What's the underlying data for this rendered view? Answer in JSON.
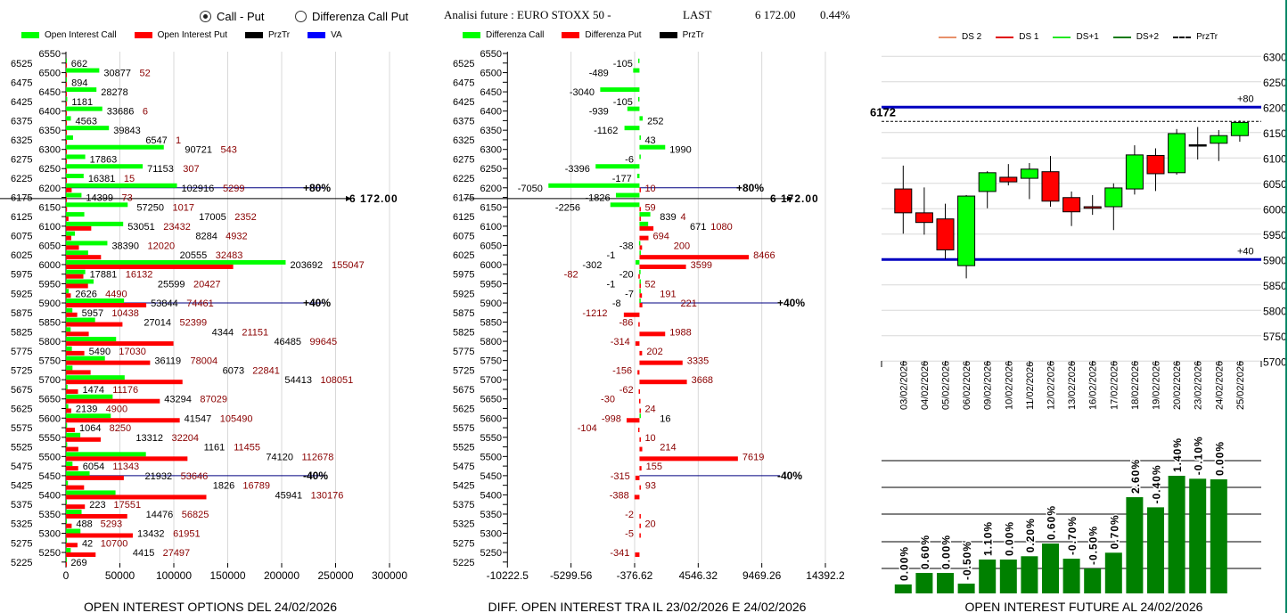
{
  "controls": {
    "radio_options": [
      {
        "label": "Call - Put",
        "selected": true
      },
      {
        "label": "Differenza Call Put",
        "selected": false
      }
    ]
  },
  "header": {
    "title": "Analisi future : EURO STOXX 50 -",
    "last_label": "LAST",
    "last_value": "6 172.00",
    "change": "0.44%"
  },
  "legends": {
    "left": [
      {
        "label": "Open Interest Call",
        "color": "#00ff00"
      },
      {
        "label": "Open Interest Put",
        "color": "#ff0000"
      },
      {
        "label": "PrzTr",
        "color": "#000000"
      },
      {
        "label": "VA",
        "color": "#0000ff"
      }
    ],
    "middle": [
      {
        "label": "Differenza Call",
        "color": "#00ff00"
      },
      {
        "label": "Differenza Put",
        "color": "#ff0000"
      },
      {
        "label": "PrzTr",
        "color": "#000000"
      }
    ],
    "right": [
      {
        "label": "DS 2",
        "color": "#e8906a",
        "style": "solid"
      },
      {
        "label": "DS 1",
        "color": "#e00000",
        "style": "solid"
      },
      {
        "label": "DS+1",
        "color": "#22e822",
        "style": "solid"
      },
      {
        "label": "DS+2",
        "color": "#0a7a0a",
        "style": "solid"
      },
      {
        "label": "PrzTr",
        "color": "#000000",
        "style": "dashed"
      }
    ]
  },
  "chart_data": [
    {
      "type": "bar",
      "orientation": "horizontal",
      "title": "OPEN INTEREST OPTIONS DEL 24/02/2026",
      "y_tick_labels": [
        "6550",
        "6525",
        "6500",
        "6475",
        "6450",
        "6425",
        "6400",
        "6375",
        "6350",
        "6325",
        "6300",
        "6275",
        "6250",
        "6225",
        "6200",
        "6175",
        "6150",
        "6125",
        "6100",
        "6075",
        "6050",
        "6025",
        "6000",
        "5975",
        "5950",
        "5925",
        "5900",
        "5875",
        "5850",
        "5825",
        "5800",
        "5775",
        "5750",
        "5725",
        "5700",
        "5675",
        "5650",
        "5625",
        "5600",
        "5575",
        "5550",
        "5525",
        "5500",
        "5475",
        "5450",
        "5425",
        "5400",
        "5375",
        "5350",
        "5325",
        "5300",
        "5275",
        "5250",
        "5225"
      ],
      "strikes": [
        6525,
        6500,
        6475,
        6450,
        6425,
        6400,
        6375,
        6350,
        6325,
        6300,
        6275,
        6250,
        6225,
        6200,
        6175,
        6150,
        6125,
        6100,
        6075,
        6050,
        6025,
        6000,
        5975,
        5950,
        5925,
        5900,
        5875,
        5850,
        5825,
        5800,
        5775,
        5750,
        5725,
        5700,
        5675,
        5650,
        5625,
        5600,
        5575,
        5550,
        5525,
        5500,
        5475,
        5450,
        5425,
        5400,
        5375,
        5350,
        5325,
        5300,
        5275,
        5250,
        5225
      ],
      "series": [
        {
          "name": "Open Interest Call",
          "color": "#00ff00",
          "values": [
            662,
            30877,
            894,
            28278,
            1181,
            33686,
            4563,
            39843,
            6547,
            90721,
            17863,
            71153,
            16381,
            102916,
            14399,
            57250,
            17005,
            53051,
            8284,
            38390,
            20555,
            203692,
            17881,
            25599,
            2626,
            53844,
            5957,
            27014,
            4344,
            46485,
            5490,
            36119,
            6073,
            54413,
            1474,
            43294,
            2139,
            41547,
            1064,
            13312,
            1161,
            74120,
            6054,
            21932,
            1826,
            45941,
            223,
            14476,
            488,
            13432,
            42,
            4415,
            269
          ]
        },
        {
          "name": "Open Interest Put",
          "color": "#ff0000",
          "values": [
            0,
            52,
            0,
            0,
            0,
            6,
            0,
            0,
            1,
            543,
            0,
            307,
            15,
            5299,
            73,
            1017,
            2352,
            23432,
            4932,
            12020,
            32483,
            155047,
            16132,
            20427,
            4490,
            74461,
            10438,
            52399,
            21151,
            99645,
            17030,
            78004,
            22841,
            108051,
            11176,
            87029,
            4900,
            105490,
            8250,
            32204,
            11455,
            112678,
            11343,
            53646,
            16789,
            130176,
            17551,
            56825,
            5293,
            61951,
            10700,
            27497,
            0
          ]
        }
      ],
      "x_ticks": [
        "0",
        "50000",
        "100000",
        "150000",
        "200000",
        "250000",
        "300000"
      ],
      "xlim": [
        0,
        300000
      ],
      "ylim": [
        5225,
        6550
      ],
      "grid": true,
      "reference_lines": [
        {
          "label": "+80%",
          "value": 6200,
          "color": "#000080"
        },
        {
          "label": "+40%",
          "value": 5900,
          "color": "#000080"
        },
        {
          "label": "-40%",
          "value": 5450,
          "color": "#000080"
        }
      ],
      "price_line": {
        "label": "6 172.00",
        "value": 6172
      }
    },
    {
      "type": "bar",
      "orientation": "horizontal",
      "title": "DIFF. OPEN INTEREST TRA IL 23/02/2026 E 24/02/2026",
      "series": [
        {
          "name": "Differenza Call",
          "color": "#00ff00",
          "values": [
            -105,
            -489,
            null,
            -3040,
            -105,
            -939,
            252,
            -1162,
            43,
            1990,
            -6,
            -3396,
            -177,
            -7050,
            -1826,
            -2256,
            839,
            671,
            null,
            -38,
            -1,
            -302,
            -20,
            -1,
            -7,
            -8,
            null,
            null,
            null,
            null,
            null,
            null,
            null,
            null,
            null,
            null,
            null,
            16,
            null,
            null,
            null,
            null,
            null,
            null,
            null,
            null,
            null,
            null,
            null,
            null,
            null,
            null,
            null
          ]
        },
        {
          "name": "Differenza Put",
          "color": "#ff0000",
          "values": [
            null,
            null,
            null,
            null,
            null,
            null,
            null,
            null,
            null,
            null,
            null,
            null,
            null,
            10,
            null,
            59,
            4,
            1080,
            694,
            200,
            8466,
            3599,
            -82,
            52,
            191,
            221,
            -1212,
            -86,
            1988,
            -314,
            202,
            3335,
            -156,
            3668,
            -62,
            -30,
            24,
            -998,
            -104,
            10,
            214,
            7619,
            155,
            -315,
            93,
            -388,
            null,
            -2,
            20,
            -5,
            null,
            -341,
            null
          ]
        }
      ],
      "x_ticks": [
        "-10222.5",
        "-5299.56",
        "-376.62",
        "4546.32",
        "9469.26",
        "14392.2"
      ],
      "xlim": [
        -10222.5,
        14392.2
      ],
      "grid": true,
      "reference_lines": [
        {
          "label": "+80%",
          "value": 6200,
          "color": "#000080"
        },
        {
          "label": "+40%",
          "value": 5900,
          "color": "#000080"
        },
        {
          "label": "-40%",
          "value": 5450,
          "color": "#000080"
        }
      ],
      "price_line": {
        "label": "6 172.00",
        "value": 6172
      }
    },
    {
      "type": "candlestick",
      "dates": [
        "03/02/2026",
        "04/02/2026",
        "05/02/2026",
        "06/02/2026",
        "09/02/2026",
        "10/02/2026",
        "11/02/2026",
        "12/02/2026",
        "13/02/2026",
        "16/02/2026",
        "17/02/2026",
        "18/02/2026",
        "19/02/2026",
        "20/02/2026",
        "23/02/2026",
        "24/02/2026",
        "25/02/2026"
      ],
      "ohlc": [
        [
          6039,
          6085,
          5951,
          5992
        ],
        [
          5992,
          6042,
          5949,
          5973
        ],
        [
          5980,
          6010,
          5901,
          5919
        ],
        [
          5888,
          6027,
          5863,
          6025
        ],
        [
          6034,
          6074,
          6001,
          6071
        ],
        [
          6062,
          6088,
          6046,
          6053
        ],
        [
          6060,
          6090,
          6019,
          6078
        ],
        [
          6073,
          6104,
          6004,
          6015
        ],
        [
          6022,
          6034,
          5966,
          5994
        ],
        [
          6004,
          6027,
          5988,
          6001
        ],
        [
          6004,
          6050,
          5958,
          6041
        ],
        [
          6039,
          6125,
          6028,
          6106
        ],
        [
          6105,
          6119,
          6035,
          6069
        ],
        [
          6071,
          6157,
          6067,
          6148
        ],
        [
          6126,
          6161,
          6097,
          6126
        ],
        [
          6129,
          6155,
          6094,
          6144
        ],
        [
          6144,
          6174,
          6132,
          6170
        ]
      ],
      "y_ticks": [
        "6300",
        "6250",
        "6200",
        "6150",
        "6100",
        "6050",
        "6000",
        "5950",
        "5900",
        "5850",
        "5800",
        "5750",
        "5700"
      ],
      "ylim": [
        5700,
        6300
      ],
      "grid": true,
      "reference_lines": [
        {
          "label": "+80",
          "value": 6200,
          "color": "#0000c0"
        },
        {
          "label": "+40",
          "value": 5900,
          "color": "#0000c0"
        }
      ],
      "price_line": {
        "label": "6172",
        "value": 6172
      },
      "up_color": "#00ff00",
      "down_color": "#ff0000"
    },
    {
      "type": "bar",
      "title": "OPEN INTEREST FUTURE AL 24/02/2026",
      "color": "#008000",
      "relative_height_pct": [
        7.6,
        17.4,
        17.4,
        8.3,
        28.8,
        28.8,
        31.6,
        42.4,
        29.5,
        21.2,
        34.6,
        81.8,
        73.2,
        100,
        97.5,
        97.0
      ],
      "labels": [
        "0.00%",
        "0.60%",
        "0.00%",
        "-0.50%",
        "1.10%",
        "0.00%",
        "0.20%",
        "0.60%",
        "-0.70%",
        "-0.50%",
        "0.70%",
        "2.60%",
        "-0.40%",
        "1.40%",
        "-0.10%",
        "0.00%"
      ],
      "grid": true
    }
  ]
}
